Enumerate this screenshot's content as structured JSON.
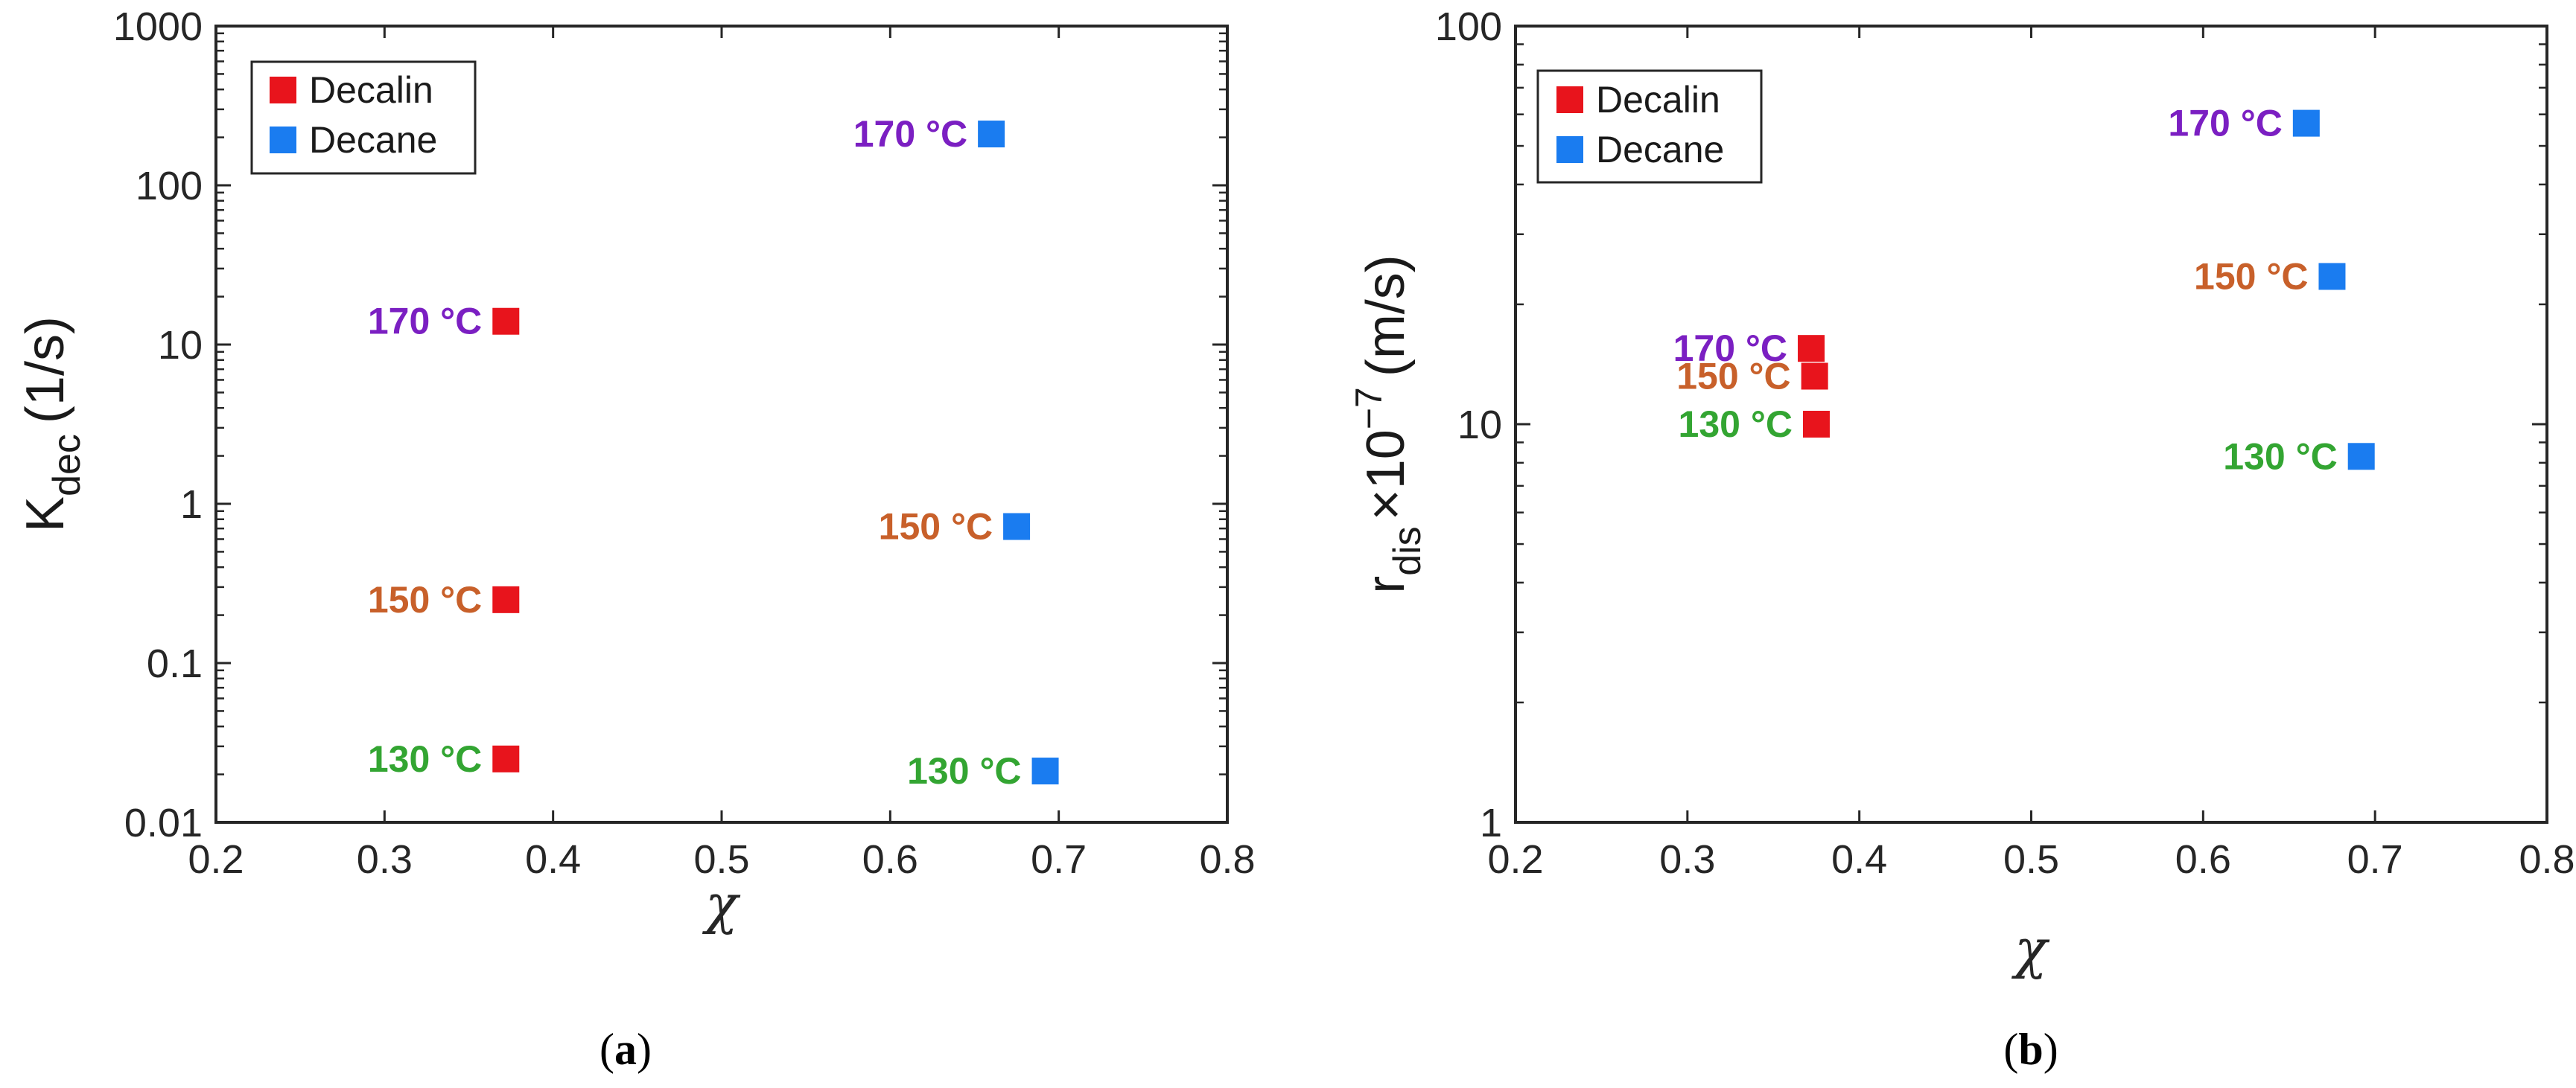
{
  "chart_data": [
    {
      "type": "scatter",
      "panel_label": "a",
      "caption_open": "(",
      "caption_close": ")",
      "ylabel_main": "K",
      "ylabel_sub": "dec",
      "ylabel_unit": "(1/s)",
      "xlabel": "χ",
      "xlim": [
        0.2,
        0.8
      ],
      "ylim": [
        0.01,
        1000
      ],
      "yscale": "log",
      "xticks": [
        "0.2",
        "0.3",
        "0.4",
        "0.5",
        "0.6",
        "0.7",
        "0.8"
      ],
      "yticks": [
        "0.01",
        "0.1",
        "1",
        "10",
        "100",
        "1000"
      ],
      "legend": {
        "position": "top-left",
        "entries": [
          "Decalin",
          "Decane"
        ]
      },
      "series": [
        {
          "name": "Decalin",
          "color": "#e8141c",
          "points": [
            {
              "x": 0.372,
              "y": 14,
              "label": "170 °C",
              "label_color": "#7b1fc2"
            },
            {
              "x": 0.372,
              "y": 0.25,
              "label": "150 °C",
              "label_color": "#c8602a"
            },
            {
              "x": 0.372,
              "y": 0.025,
              "label": "130 °C",
              "label_color": "#33a532"
            }
          ]
        },
        {
          "name": "Decane",
          "color": "#1a7cf0",
          "points": [
            {
              "x": 0.66,
              "y": 210,
              "label": "170 °C",
              "label_color": "#7b1fc2"
            },
            {
              "x": 0.675,
              "y": 0.72,
              "label": "150 °C",
              "label_color": "#c8602a"
            },
            {
              "x": 0.692,
              "y": 0.021,
              "label": "130 °C",
              "label_color": "#33a532"
            }
          ]
        }
      ]
    },
    {
      "type": "scatter",
      "panel_label": "b",
      "caption_open": "(",
      "caption_close": ")",
      "ylabel_main": "r",
      "ylabel_sub": "dis",
      "ylabel_times": "×10",
      "ylabel_sup": "−7",
      "ylabel_unit": "(m/s)",
      "xlabel": "χ",
      "xlim": [
        0.2,
        0.8
      ],
      "ylim": [
        1,
        100
      ],
      "yscale": "log",
      "xticks": [
        "0.2",
        "0.3",
        "0.4",
        "0.5",
        "0.6",
        "0.7",
        "0.8"
      ],
      "yticks": [
        "1",
        "10",
        "100"
      ],
      "legend": {
        "position": "top-left",
        "entries": [
          "Decalin",
          "Decane"
        ]
      },
      "series": [
        {
          "name": "Decalin",
          "color": "#e8141c",
          "points": [
            {
              "x": 0.372,
              "y": 15.5,
              "label": "170 °C",
              "label_color": "#7b1fc2"
            },
            {
              "x": 0.374,
              "y": 13.2,
              "label": "150 °C",
              "label_color": "#c8602a"
            },
            {
              "x": 0.375,
              "y": 10,
              "label": "130 °C",
              "label_color": "#33a532"
            }
          ]
        },
        {
          "name": "Decane",
          "color": "#1a7cf0",
          "points": [
            {
              "x": 0.66,
              "y": 57,
              "label": "170 °C",
              "label_color": "#7b1fc2"
            },
            {
              "x": 0.675,
              "y": 23.5,
              "label": "150 °C",
              "label_color": "#c8602a"
            },
            {
              "x": 0.692,
              "y": 8.3,
              "label": "130 °C",
              "label_color": "#33a532"
            }
          ]
        }
      ]
    }
  ]
}
